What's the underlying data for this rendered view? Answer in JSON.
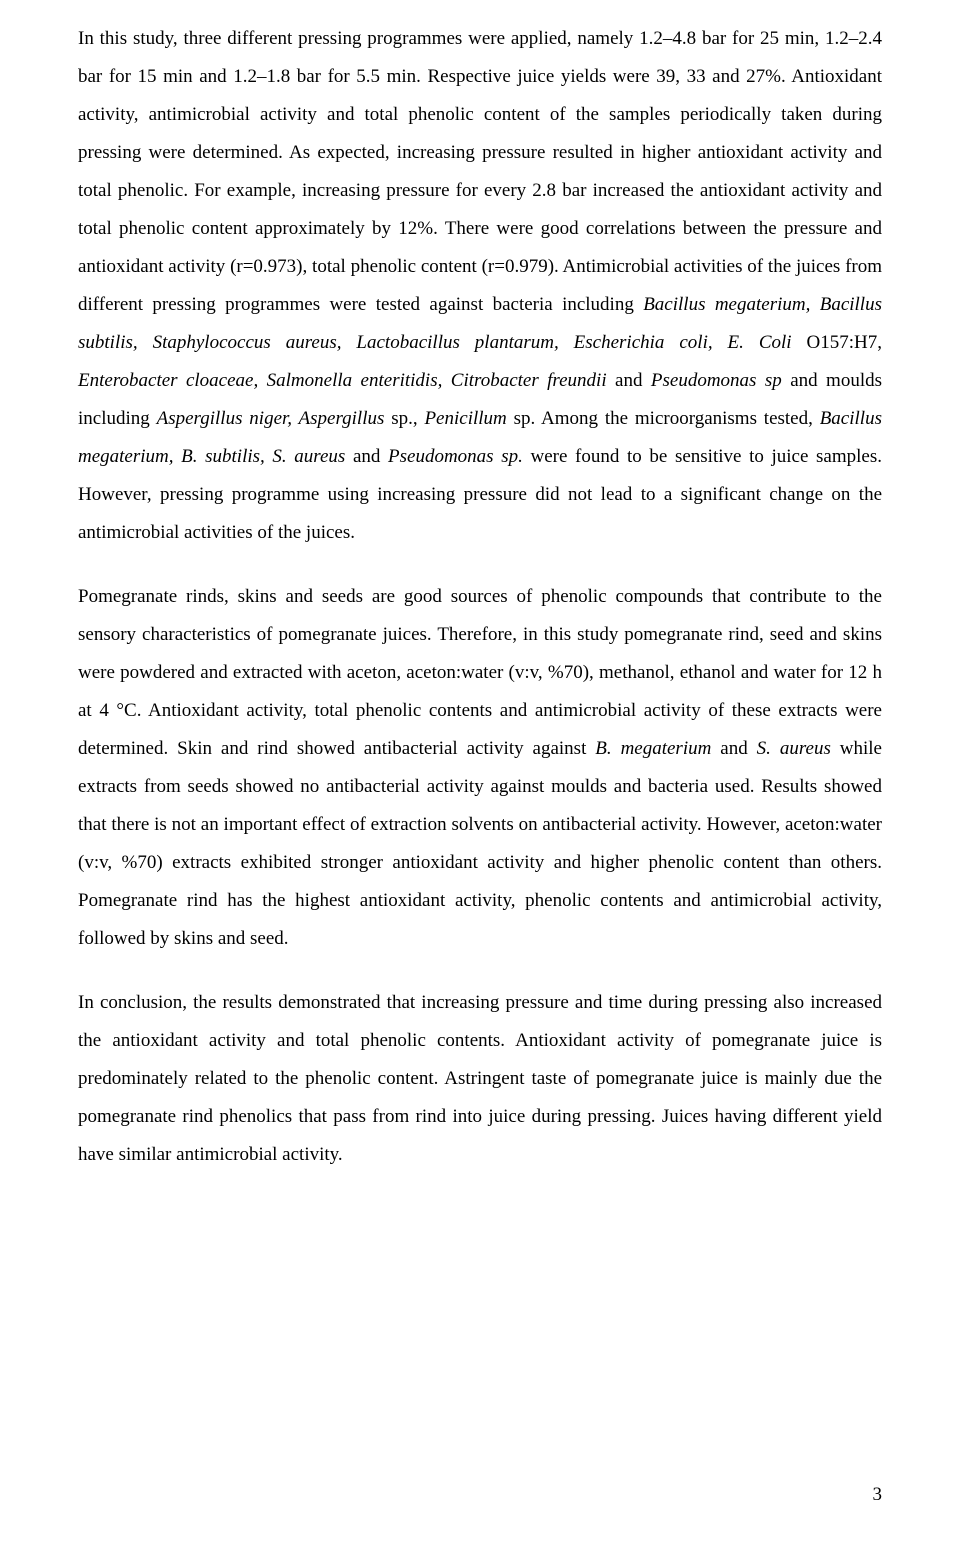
{
  "page_number": "3",
  "paragraphs": {
    "p1": {
      "t1": "In this study, three different pressing programmes were applied, namely 1.2–4.8 bar for 25 min, 1.2–2.4 bar for 15 min and 1.2–1.8 bar for 5.5 min. Respective juice yields were 39, 33 and 27%. Antioxidant activity, antimicrobial activity and total phenolic content of the samples periodically taken during pressing were determined. As expected, increasing pressure resulted in higher antioxidant activity and total phenolic. For example, increasing pressure for every 2.8 bar increased the antioxidant activity and total phenolic content approximately by 12%. There were good correlations between the pressure and antioxidant activity (r=0.973), total phenolic content (r=0.979). Antimicrobial activities of the juices from different pressing programmes were tested against bacteria including ",
      "i1": "Bacillus megaterium, Bacillus subtilis, Staphylococcus aureus, Lactobacillus plantarum, Escherichia coli, E. Coli ",
      "t2": "O157:H7, ",
      "i2": "Enterobacter cloaceae, Salmonella enteritidis, Citrobacter freundii ",
      "t3": "and ",
      "i3": "Pseudomonas sp ",
      "t4": "and moulds including ",
      "i4": "Aspergillus niger, Aspergillus ",
      "t5": "sp., ",
      "i5": "Penicillum ",
      "t6": "sp. Among the microorganisms tested, ",
      "i6": "Bacillus megaterium, B. subtilis, S. aureus ",
      "t7": "and ",
      "i7": "Pseudomonas sp. ",
      "t8": "were found to be sensitive to juice samples. However, pressing programme using increasing pressure did not lead to a significant change on the antimicrobial activities of the juices."
    },
    "p2": {
      "t1": "Pomegranate rinds, skins and seeds are good sources of phenolic compounds that contribute to the sensory characteristics of pomegranate juices. Therefore, in this study pomegranate rind, seed and skins were powdered and extracted with aceton, aceton:water (v:v, %70), methanol, ethanol and water for 12 h at 4 °C. Antioxidant activity, total phenolic contents and antimicrobial activity of these extracts were determined. Skin and rind showed antibacterial activity against ",
      "i1": "B. megaterium ",
      "t2": "and ",
      "i2": "S. aureus ",
      "t3": "while extracts from seeds showed no antibacterial activity against moulds and bacteria used. Results showed that there is not an important effect of extraction solvents on antibacterial activity. However, aceton:water (v:v, %70) extracts exhibited stronger antioxidant activity and higher phenolic content than others. Pomegranate rind has the highest antioxidant activity, phenolic contents and antimicrobial activity, followed by skins and seed."
    },
    "p3": {
      "t1": "In conclusion, the results demonstrated that increasing pressure and time during pressing also increased the antioxidant activity and total phenolic contents. Antioxidant activity of pomegranate juice is predominately related to the phenolic content. Astringent taste of pomegranate juice is mainly due the pomegranate rind phenolics that pass from rind into juice during pressing. Juices having different yield have similar antimicrobial activity."
    }
  }
}
